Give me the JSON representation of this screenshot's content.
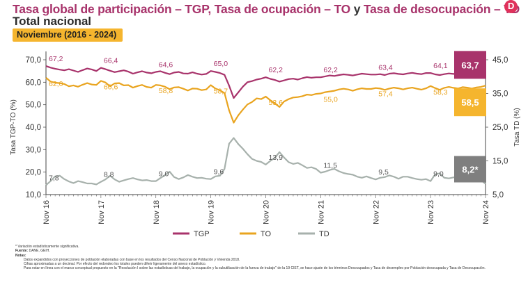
{
  "header": {
    "title_tgp": "Tasa global de participación – TGP,",
    "title_to": "Tasa de ocupación – TO",
    "title_y": "y",
    "title_td": "Tasa de desocupación – TD",
    "subtitle": "Total nacional",
    "period": "Noviembre (2016 - 2024)"
  },
  "colors": {
    "tgp": "#a8336b",
    "to": "#e9a41f",
    "td": "#a7b1ac",
    "badge_tgp": "#a8336b",
    "badge_to": "#f5b52e",
    "badge_td": "#7f7f7f"
  },
  "chart_data": {
    "type": "line",
    "title": "Tasa global de participación – TGP, Tasa de ocupación – TO y Tasa de desocupación – TD. Total nacional",
    "x": [
      "Nov 16",
      "Nov 17",
      "Nov 18",
      "Nov 19",
      "Nov 20",
      "Nov 21",
      "Nov 22",
      "Nov 23",
      "Nov 24"
    ],
    "ylabel_left": "Tasa TGP-TO (%)",
    "ylabel_right": "Tasa TD (%)",
    "ylim_left": [
      10,
      70
    ],
    "ylim_right": [
      5,
      45
    ],
    "yticks_left": [
      "70,0",
      "60,0",
      "50,0",
      "40,0",
      "30,0",
      "20,0",
      "10,0"
    ],
    "yticks_right": [
      "45,0",
      "35,0",
      "25,0",
      "15,0",
      "5,0"
    ],
    "series": [
      {
        "name": "TGP",
        "axis": "left",
        "values": [
          67.2,
          66.4,
          64.6,
          65.0,
          62.2,
          62.2,
          63.4,
          64.1,
          63.7
        ],
        "labels": [
          "67,2",
          "66,4",
          "64,6",
          "65,0",
          "62,2",
          "62,2",
          "63,4",
          "64,1",
          "63,7"
        ],
        "monthly": [
          67.2,
          66.5,
          66.0,
          65.6,
          65.3,
          65.8,
          65.2,
          64.6,
          65.4,
          66.1,
          65.7,
          65.0,
          66.4,
          65.8,
          65.1,
          64.5,
          64.9,
          65.3,
          64.7,
          63.8,
          64.4,
          64.9,
          64.3,
          64.0,
          64.6,
          64.9,
          64.2,
          63.6,
          64.3,
          64.6,
          63.9,
          63.8,
          64.4,
          63.8,
          63.4,
          63.7,
          65.0,
          64.6,
          64.1,
          63.3,
          58.5,
          53.0,
          55.5,
          58.0,
          60.0,
          60.5,
          61.2,
          61.6,
          62.2,
          61.5,
          61.0,
          60.3,
          60.8,
          61.4,
          61.6,
          61.2,
          61.8,
          62.3,
          62.0,
          62.2,
          62.2,
          62.6,
          63.0,
          62.8,
          63.2,
          63.5,
          63.3,
          63.0,
          63.4,
          63.8,
          63.6,
          63.4,
          63.4,
          63.6,
          63.2,
          63.8,
          64.0,
          63.7,
          63.5,
          63.9,
          64.2,
          63.8,
          63.6,
          64.1,
          64.1,
          63.5,
          63.2,
          63.6,
          63.9,
          63.7,
          63.9,
          64.2,
          63.8,
          64.0,
          63.8,
          63.7,
          63.7
        ]
      },
      {
        "name": "TO",
        "axis": "left",
        "values": [
          62.0,
          60.6,
          58.8,
          58.7,
          53.6,
          55.0,
          57.4,
          58.3,
          58.5
        ],
        "labels": [
          "62,0",
          "60,6",
          "58,8",
          "58,7",
          "53,6",
          "55,0",
          "57,4",
          "58,3",
          "58,5"
        ],
        "monthly": [
          62.0,
          60.3,
          59.8,
          59.6,
          59.2,
          58.2,
          58.6,
          58.0,
          58.9,
          59.6,
          59.0,
          58.8,
          60.6,
          59.9,
          58.2,
          59.5,
          59.6,
          58.6,
          58.7,
          57.6,
          58.3,
          58.8,
          57.9,
          57.6,
          58.8,
          58.6,
          58.0,
          56.9,
          57.7,
          57.8,
          57.1,
          56.3,
          57.2,
          57.1,
          56.5,
          56.8,
          58.7,
          57.2,
          56.4,
          55.2,
          47.5,
          42.0,
          45.3,
          47.8,
          50.1,
          51.2,
          52.8,
          52.5,
          53.6,
          52.0,
          50.5,
          49.0,
          51.4,
          52.5,
          53.2,
          53.4,
          53.8,
          54.5,
          54.3,
          54.8,
          55.0,
          55.6,
          55.9,
          56.2,
          56.8,
          57.1,
          56.8,
          56.2,
          56.9,
          57.3,
          57.0,
          57.0,
          57.4,
          57.2,
          56.6,
          57.2,
          57.6,
          57.3,
          56.8,
          57.3,
          57.6,
          57.1,
          56.7,
          57.3,
          58.3,
          57.4,
          56.6,
          57.5,
          57.9,
          57.5,
          57.2,
          57.8,
          57.6,
          57.2,
          57.7,
          57.9,
          58.5
        ]
      },
      {
        "name": "TD",
        "axis": "right",
        "values": [
          7.8,
          8.8,
          9.0,
          9.6,
          13.9,
          11.5,
          9.5,
          9.0,
          8.2
        ],
        "labels": [
          "7,8",
          "8,8",
          "9,0",
          "9,6",
          "13,9",
          "11,5",
          "9,5",
          "9,0",
          "8,2*"
        ],
        "monthly": [
          7.8,
          9.0,
          10.4,
          10.6,
          9.6,
          8.9,
          8.4,
          9.0,
          8.7,
          8.3,
          8.3,
          8.0,
          8.8,
          9.5,
          10.6,
          9.5,
          8.8,
          9.2,
          9.6,
          9.9,
          9.5,
          9.2,
          9.3,
          9.0,
          9.0,
          9.9,
          10.8,
          11.8,
          10.2,
          9.6,
          10.1,
          10.8,
          10.3,
          9.9,
          10.0,
          9.7,
          9.6,
          10.4,
          10.6,
          12.6,
          20.1,
          21.8,
          20.0,
          18.6,
          17.0,
          15.6,
          15.0,
          14.7,
          13.9,
          15.0,
          15.9,
          17.6,
          16.0,
          14.6,
          14.1,
          14.4,
          13.7,
          12.9,
          13.1,
          12.6,
          11.5,
          11.8,
          12.3,
          12.6,
          11.9,
          11.4,
          11.1,
          10.9,
          10.3,
          10.0,
          10.4,
          9.9,
          9.5,
          10.0,
          10.2,
          10.7,
          10.3,
          9.7,
          10.3,
          10.3,
          9.9,
          9.6,
          9.4,
          9.6,
          9.0,
          11.0,
          11.3,
          10.0,
          9.8,
          10.1,
          10.3,
          9.5,
          9.6,
          9.9,
          9.6,
          9.3,
          8.2
        ]
      }
    ],
    "highlight_last": true,
    "legend": [
      "TGP",
      "TO",
      "TD"
    ],
    "legend_position": "bottom"
  },
  "notes": {
    "asterisk": "* Variación estadísticamente significativa.",
    "source_label": "Fuente:",
    "source": "DANE, GEIH.",
    "notes_label": "Notas:",
    "items": [
      "Datos expandidos con proyecciones de población elaboradas con base en los resultados del Censo Nacional de Población y Vivienda 2018.",
      "Cifras aproximadas a un decimal. Por efecto del redondeo los totales pueden diferir ligeramente del anexo estadístico.",
      "Para estar en línea con el marco conceptual propuesto en la \"Resolución I sobre las estadísticas del trabajo, la ocupación y la subutilización de la fuerza de trabajo\" de la 19 CIET, se hace ajuste de los términos Desocupados y Tasa de desempleo por Población desocupada y Tasa de Desocupación."
    ]
  }
}
